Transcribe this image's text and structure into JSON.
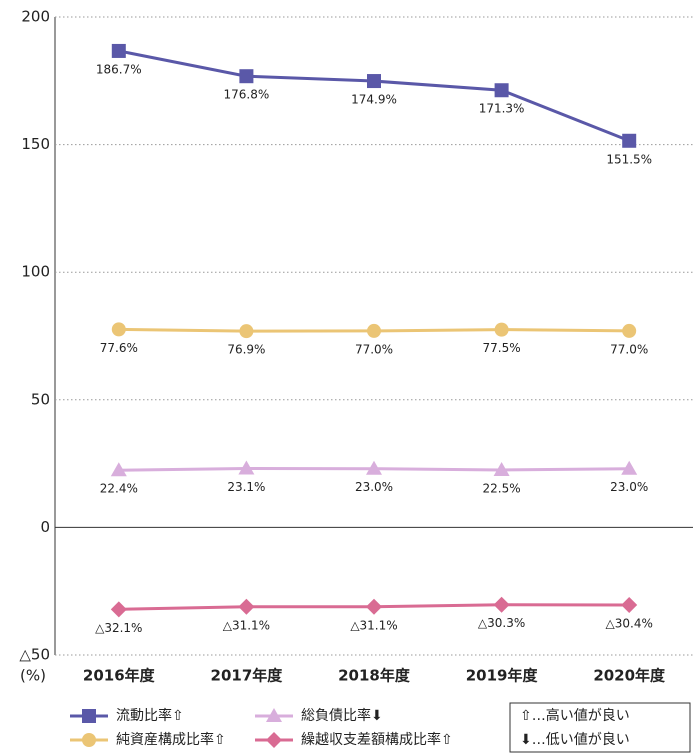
{
  "chart_data": {
    "type": "line",
    "y_label": "(%)",
    "categories": [
      "2016年度",
      "2017年度",
      "2018年度",
      "2019年度",
      "2020年度"
    ],
    "series": [
      {
        "name": "流動比率⇧",
        "color": "#5a58a8",
        "marker": "square",
        "values": [
          186.7,
          176.8,
          174.9,
          171.3,
          151.5
        ],
        "value_labels": [
          "186.7%",
          "176.8%",
          "174.9%",
          "171.3%",
          "151.5%"
        ]
      },
      {
        "name": "純資産構成比率⇧",
        "color": "#ebc575",
        "marker": "circle",
        "values": [
          77.6,
          76.9,
          77.0,
          77.5,
          77.0
        ],
        "value_labels": [
          "77.6%",
          "76.9%",
          "77.0%",
          "77.5%",
          "77.0%"
        ]
      },
      {
        "name": "総負債比率⬇",
        "color": "#d8aedc",
        "marker": "triangle",
        "values": [
          22.4,
          23.1,
          23.0,
          22.5,
          23.0
        ],
        "value_labels": [
          "22.4%",
          "23.1%",
          "23.0%",
          "22.5%",
          "23.0%"
        ]
      },
      {
        "name": "繰越収支差額構成比率⇧",
        "color": "#d96b93",
        "marker": "diamond",
        "values": [
          -32.1,
          -31.1,
          -31.1,
          -30.3,
          -30.4
        ],
        "value_labels": [
          "△32.1%",
          "△31.1%",
          "△31.1%",
          "△30.3%",
          "△30.4%"
        ]
      }
    ],
    "ylim": [
      -50,
      200
    ],
    "yticks": [
      {
        "value": -50,
        "label": "△50"
      },
      0,
      50,
      100,
      150,
      200
    ],
    "grid": true,
    "notes": [
      "⇧…高い値が良い",
      "⬇…低い値が良い"
    ]
  }
}
